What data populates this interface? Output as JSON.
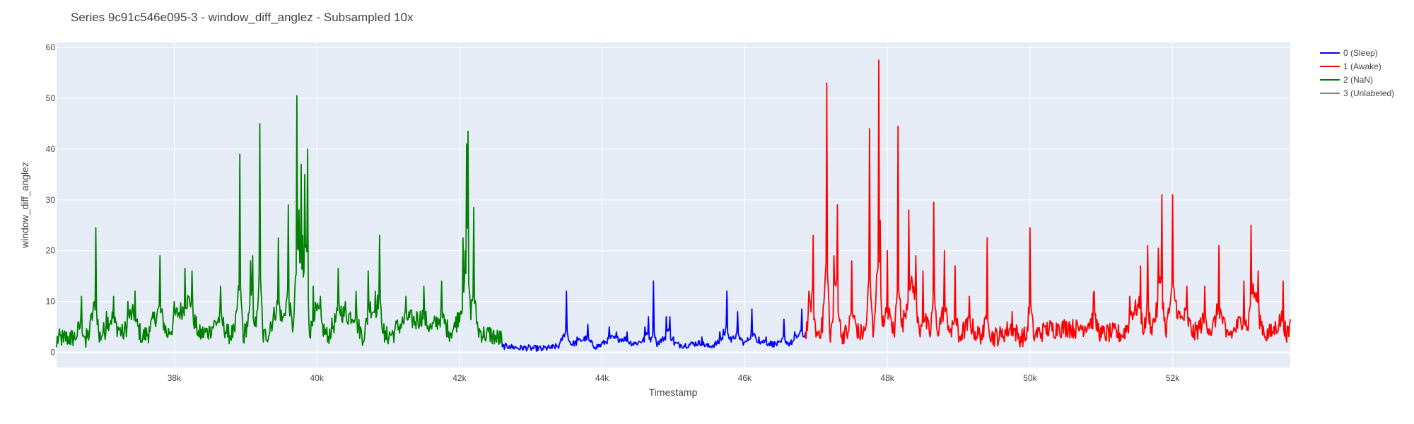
{
  "chart_data": {
    "type": "line",
    "title": "Series 9c91c546e095-3 - window_diff_anglez - Subsampled 10x",
    "xlabel": "Timestamp",
    "ylabel": "window_diff_anglez",
    "xlim": [
      36350,
      53650
    ],
    "ylim": [
      -3,
      61
    ],
    "x_ticks": [
      38000,
      40000,
      42000,
      44000,
      46000,
      48000,
      50000,
      52000
    ],
    "x_tick_labels": [
      "38k",
      "40k",
      "42k",
      "44k",
      "46k",
      "48k",
      "50k",
      "52k"
    ],
    "y_ticks": [
      0,
      10,
      20,
      30,
      40,
      50,
      60
    ],
    "y_tick_labels": [
      "0",
      "10",
      "20",
      "30",
      "40",
      "50",
      "60"
    ],
    "grid": true,
    "legend_position": "top-right",
    "plot_background": "#e5ecf6",
    "legend": [
      {
        "label": "0 (Sleep)",
        "color": "#0000ff"
      },
      {
        "label": "1 (Awake)",
        "color": "#ff0000"
      },
      {
        "label": "2 (NaN)",
        "color": "#008000"
      },
      {
        "label": "3 (Unlabeled)",
        "color": "#808080"
      }
    ],
    "series": [
      {
        "name": "2 (NaN)",
        "color": "#008000",
        "x_range": [
          36350,
          42600
        ],
        "points": [
          [
            36350,
            1
          ],
          [
            36450,
            2
          ],
          [
            36550,
            1.5
          ],
          [
            36620,
            2.5
          ],
          [
            36700,
            11
          ],
          [
            36760,
            1
          ],
          [
            36820,
            6
          ],
          [
            36900,
            24.5
          ],
          [
            36950,
            2
          ],
          [
            37050,
            8
          ],
          [
            37150,
            11
          ],
          [
            37280,
            3
          ],
          [
            37350,
            10
          ],
          [
            37450,
            12
          ],
          [
            37550,
            2
          ],
          [
            37650,
            5
          ],
          [
            37800,
            19
          ],
          [
            37900,
            3
          ],
          [
            38000,
            10
          ],
          [
            38150,
            16.5
          ],
          [
            38250,
            16
          ],
          [
            38350,
            3
          ],
          [
            38500,
            5
          ],
          [
            38650,
            13
          ],
          [
            38750,
            3
          ],
          [
            38850,
            4
          ],
          [
            38920,
            39
          ],
          [
            38970,
            2
          ],
          [
            39070,
            18
          ],
          [
            39100,
            19
          ],
          [
            39150,
            5
          ],
          [
            39200,
            45
          ],
          [
            39250,
            2
          ],
          [
            39350,
            6
          ],
          [
            39460,
            22.5
          ],
          [
            39520,
            7
          ],
          [
            39600,
            29
          ],
          [
            39660,
            4
          ],
          [
            39720,
            50.5
          ],
          [
            39750,
            28
          ],
          [
            39780,
            37
          ],
          [
            39800,
            23
          ],
          [
            39830,
            35
          ],
          [
            39870,
            40
          ],
          [
            39900,
            3
          ],
          [
            39950,
            13
          ],
          [
            40050,
            11
          ],
          [
            40150,
            2
          ],
          [
            40300,
            16.5
          ],
          [
            40400,
            10
          ],
          [
            40550,
            12
          ],
          [
            40650,
            2
          ],
          [
            40720,
            16
          ],
          [
            40820,
            12
          ],
          [
            40880,
            23
          ],
          [
            40950,
            2
          ],
          [
            41100,
            5
          ],
          [
            41250,
            11
          ],
          [
            41400,
            8
          ],
          [
            41500,
            13
          ],
          [
            41600,
            5
          ],
          [
            41750,
            14
          ],
          [
            41850,
            4
          ],
          [
            41950,
            7
          ],
          [
            42050,
            22.5
          ],
          [
            42080,
            20
          ],
          [
            42100,
            41
          ],
          [
            42120,
            43.5
          ],
          [
            42150,
            10
          ],
          [
            42200,
            28.5
          ],
          [
            42250,
            6
          ],
          [
            42350,
            3
          ],
          [
            42450,
            3
          ],
          [
            42520,
            2
          ],
          [
            42600,
            1
          ]
        ]
      },
      {
        "name": "0 (Sleep)",
        "color": "#0000ff",
        "x_range": [
          42600,
          46850
        ],
        "points": [
          [
            42600,
            1
          ],
          [
            42700,
            1.3
          ],
          [
            42850,
            0.5
          ],
          [
            43000,
            0.5
          ],
          [
            43150,
            0.3
          ],
          [
            43300,
            0.8
          ],
          [
            43400,
            1.5
          ],
          [
            43500,
            12
          ],
          [
            43550,
            2
          ],
          [
            43650,
            3
          ],
          [
            43800,
            5.5
          ],
          [
            43900,
            1
          ],
          [
            44000,
            2
          ],
          [
            44100,
            5
          ],
          [
            44200,
            4
          ],
          [
            44350,
            4
          ],
          [
            44450,
            2
          ],
          [
            44600,
            5
          ],
          [
            44650,
            7
          ],
          [
            44700,
            3
          ],
          [
            44720,
            14
          ],
          [
            44760,
            2
          ],
          [
            44900,
            7
          ],
          [
            44950,
            7
          ],
          [
            45000,
            3
          ],
          [
            45100,
            1.5
          ],
          [
            45250,
            2
          ],
          [
            45400,
            3
          ],
          [
            45500,
            1
          ],
          [
            45650,
            4
          ],
          [
            45700,
            4.5
          ],
          [
            45750,
            12
          ],
          [
            45800,
            3
          ],
          [
            45900,
            8
          ],
          [
            46000,
            2
          ],
          [
            46100,
            8.5
          ],
          [
            46200,
            3
          ],
          [
            46300,
            3
          ],
          [
            46400,
            2
          ],
          [
            46500,
            2
          ],
          [
            46550,
            6.5
          ],
          [
            46600,
            2
          ],
          [
            46700,
            4
          ],
          [
            46800,
            8.5
          ],
          [
            46850,
            4
          ]
        ]
      },
      {
        "name": "1 (Awake)",
        "color": "#ff0000",
        "x_range": [
          46850,
          53650
        ],
        "points": [
          [
            46850,
            4
          ],
          [
            46900,
            12
          ],
          [
            46960,
            23
          ],
          [
            47000,
            3
          ],
          [
            47100,
            9
          ],
          [
            47150,
            53
          ],
          [
            47200,
            2
          ],
          [
            47250,
            19
          ],
          [
            47300,
            29
          ],
          [
            47350,
            3
          ],
          [
            47450,
            4
          ],
          [
            47500,
            18
          ],
          [
            47600,
            3
          ],
          [
            47700,
            5
          ],
          [
            47750,
            44
          ],
          [
            47800,
            3
          ],
          [
            47880,
            57.5
          ],
          [
            47900,
            26
          ],
          [
            47950,
            5
          ],
          [
            48000,
            20
          ],
          [
            48100,
            3
          ],
          [
            48150,
            44.5
          ],
          [
            48200,
            5
          ],
          [
            48300,
            28
          ],
          [
            48400,
            19
          ],
          [
            48450,
            4
          ],
          [
            48500,
            16
          ],
          [
            48600,
            3
          ],
          [
            48650,
            29.5
          ],
          [
            48700,
            4
          ],
          [
            48800,
            20
          ],
          [
            48900,
            3
          ],
          [
            48950,
            17
          ],
          [
            49000,
            2
          ],
          [
            49150,
            11
          ],
          [
            49250,
            3
          ],
          [
            49350,
            3
          ],
          [
            49400,
            22.5
          ],
          [
            49450,
            2
          ],
          [
            49600,
            3
          ],
          [
            49750,
            8
          ],
          [
            49850,
            2
          ],
          [
            49950,
            2.5
          ],
          [
            50000,
            24.5
          ],
          [
            50050,
            3
          ],
          [
            50200,
            5
          ],
          [
            50400,
            5.5
          ],
          [
            50550,
            6
          ],
          [
            50700,
            5
          ],
          [
            50900,
            12
          ],
          [
            51000,
            3
          ],
          [
            51150,
            4
          ],
          [
            51300,
            3
          ],
          [
            51400,
            11
          ],
          [
            51550,
            17
          ],
          [
            51600,
            4
          ],
          [
            51650,
            21
          ],
          [
            51700,
            5
          ],
          [
            51800,
            20.5
          ],
          [
            51850,
            31
          ],
          [
            51900,
            4
          ],
          [
            52000,
            31
          ],
          [
            52100,
            8
          ],
          [
            52200,
            13
          ],
          [
            52300,
            3
          ],
          [
            52450,
            13
          ],
          [
            52550,
            4
          ],
          [
            52650,
            21
          ],
          [
            52750,
            3
          ],
          [
            52850,
            4
          ],
          [
            53000,
            14
          ],
          [
            53050,
            5
          ],
          [
            53100,
            25
          ],
          [
            53200,
            16
          ],
          [
            53300,
            3
          ],
          [
            53400,
            4
          ],
          [
            53550,
            14
          ],
          [
            53600,
            2
          ],
          [
            53650,
            6.5
          ]
        ]
      }
    ]
  }
}
